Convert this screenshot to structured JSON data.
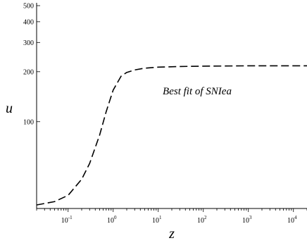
{
  "chart_data": {
    "type": "line",
    "title": "",
    "xlabel": "z",
    "ylabel": "u",
    "x_scale": "log",
    "y_scale": "log",
    "xlim": [
      0.02,
      20000
    ],
    "ylim": [
      30,
      520
    ],
    "grid": false,
    "annotation": "Best fit of SNIea",
    "x_ticks": [
      {
        "value": 0.1,
        "base": "10",
        "exp": "-1"
      },
      {
        "value": 1,
        "base": "10",
        "exp": "0"
      },
      {
        "value": 10,
        "base": "10",
        "exp": "1"
      },
      {
        "value": 100,
        "base": "10",
        "exp": "2"
      },
      {
        "value": 1000,
        "base": "10",
        "exp": "3"
      },
      {
        "value": 10000,
        "base": "10",
        "exp": "4"
      }
    ],
    "y_ticks": [
      {
        "value": 100,
        "label": "100"
      },
      {
        "value": 200,
        "label": "200"
      },
      {
        "value": 300,
        "label": "300"
      },
      {
        "value": 400,
        "label": "400"
      },
      {
        "value": 500,
        "label": "500"
      }
    ],
    "series": [
      {
        "style": "dashed",
        "x": [
          0.02,
          0.05,
          0.1,
          0.2,
          0.3,
          0.5,
          0.7,
          1.0,
          1.5,
          2.0,
          3.0,
          5.0,
          10,
          30,
          100,
          1000,
          20000
        ],
        "y": [
          31.5,
          33,
          36,
          45,
          56,
          83,
          115,
          155,
          188,
          198,
          205,
          210,
          213,
          215,
          216,
          217,
          217
        ]
      }
    ]
  }
}
